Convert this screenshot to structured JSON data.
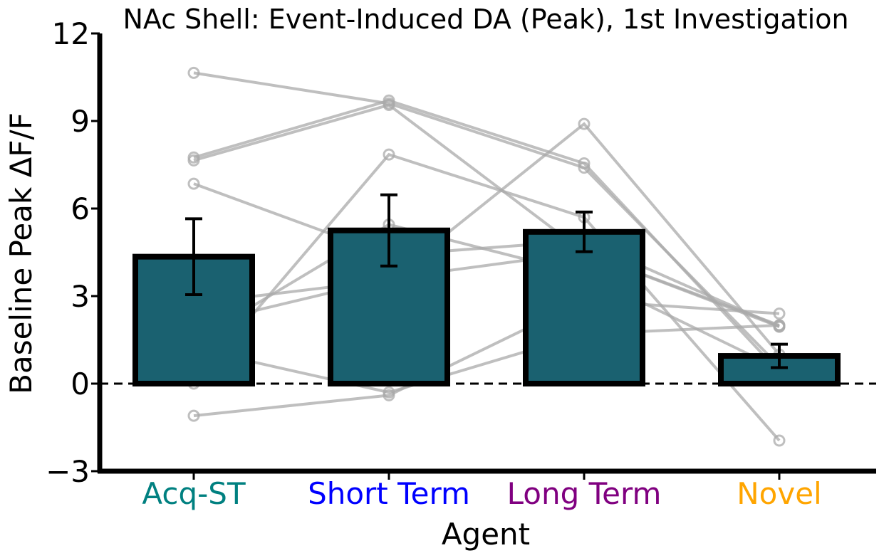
{
  "chart_data": {
    "type": "bar",
    "title": "NAc Shell: Event-Induced DA (Peak), 1st Investigation",
    "xlabel": "Agent",
    "ylabel": "Baseline Peak ΔF/F",
    "ylim": [
      -3,
      12
    ],
    "yticks": [
      -3,
      0,
      3,
      6,
      9,
      12
    ],
    "ytick_labels": [
      "−3",
      "0",
      "3",
      "6",
      "9",
      "12"
    ],
    "grid": false,
    "reference_line": 0,
    "bar_color": "#1a6170",
    "bar_edge_color": "#000000",
    "subject_line_color": "#aaaaaa",
    "categories": [
      "Acq-ST",
      "Short Term",
      "Long Term",
      "Novel"
    ],
    "category_colors": [
      "#008080",
      "#0000ff",
      "#800080",
      "#ffa500"
    ],
    "values": [
      4.35,
      5.25,
      5.2,
      0.95
    ],
    "errors": [
      1.3,
      1.22,
      0.68,
      0.4
    ],
    "subjects": [
      [
        10.65,
        9.6,
        7.4,
        0.6
      ],
      [
        7.75,
        9.7,
        7.55,
        0.4
      ],
      [
        7.65,
        9.55,
        4.5,
        2.0
      ],
      [
        6.85,
        4.4,
        4.9,
        1.95
      ],
      [
        2.75,
        3.55,
        8.9,
        1.0
      ],
      [
        2.0,
        3.6,
        4.5,
        1.95
      ],
      [
        1.45,
        5.45,
        3.75,
        0.5
      ],
      [
        1.2,
        -0.3,
        1.7,
        2.0
      ],
      [
        0.0,
        7.85,
        5.7,
        -1.95
      ],
      [
        -1.1,
        -0.4,
        2.85,
        2.4
      ]
    ]
  }
}
